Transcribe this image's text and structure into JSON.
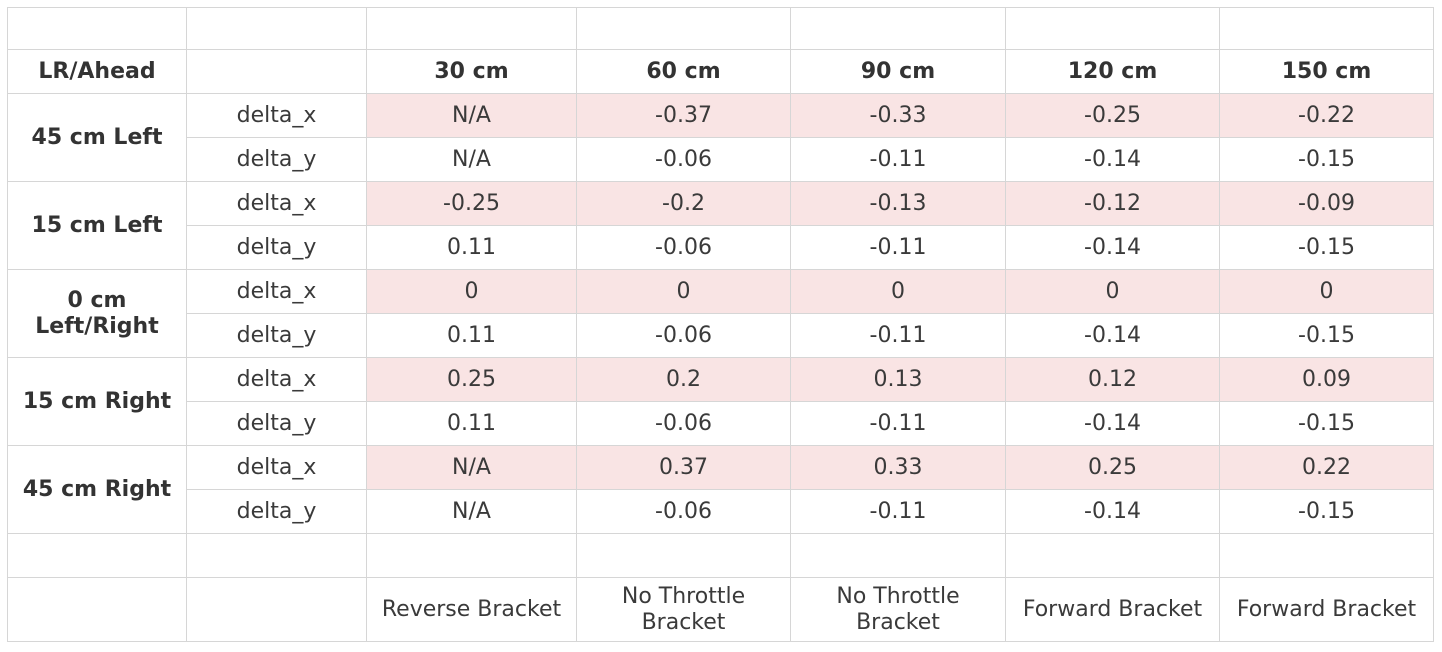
{
  "header": {
    "corner_label": "LR/Ahead",
    "distances": [
      "30 cm",
      "60 cm",
      "90 cm",
      "120 cm",
      "150 cm"
    ]
  },
  "groups": [
    {
      "label": "45 cm Left",
      "rows": [
        {
          "metric": "delta_x",
          "values": [
            "N/A",
            "-0.37",
            "-0.33",
            "-0.25",
            "-0.22"
          ]
        },
        {
          "metric": "delta_y",
          "values": [
            "N/A",
            "-0.06",
            "-0.11",
            "-0.14",
            "-0.15"
          ]
        }
      ]
    },
    {
      "label": "15 cm Left",
      "rows": [
        {
          "metric": "delta_x",
          "values": [
            "-0.25",
            "-0.2",
            "-0.13",
            "-0.12",
            "-0.09"
          ]
        },
        {
          "metric": "delta_y",
          "values": [
            "0.11",
            "-0.06",
            "-0.11",
            "-0.14",
            "-0.15"
          ]
        }
      ]
    },
    {
      "label_line1": "0 cm",
      "label_line2": "Left/Right",
      "rows": [
        {
          "metric": "delta_x",
          "values": [
            "0",
            "0",
            "0",
            "0",
            "0"
          ]
        },
        {
          "metric": "delta_y",
          "values": [
            "0.11",
            "-0.06",
            "-0.11",
            "-0.14",
            "-0.15"
          ]
        }
      ]
    },
    {
      "label": "15 cm Right",
      "rows": [
        {
          "metric": "delta_x",
          "values": [
            "0.25",
            "0.2",
            "0.13",
            "0.12",
            "0.09"
          ]
        },
        {
          "metric": "delta_y",
          "values": [
            "0.11",
            "-0.06",
            "-0.11",
            "-0.14",
            "-0.15"
          ]
        }
      ]
    },
    {
      "label": "45 cm Right",
      "rows": [
        {
          "metric": "delta_x",
          "values": [
            "N/A",
            "0.37",
            "0.33",
            "0.25",
            "0.22"
          ]
        },
        {
          "metric": "delta_y",
          "values": [
            "N/A",
            "-0.06",
            "-0.11",
            "-0.14",
            "-0.15"
          ]
        }
      ]
    }
  ],
  "footer": {
    "brackets": [
      {
        "line1": "Reverse Bracket",
        "line2": ""
      },
      {
        "line1": "No Throttle",
        "line2": "Bracket"
      },
      {
        "line1": "No Throttle",
        "line2": "Bracket"
      },
      {
        "line1": "Forward Bracket",
        "line2": ""
      },
      {
        "line1": "Forward Bracket",
        "line2": ""
      }
    ]
  },
  "colors": {
    "delta_x_row_fill": "#f9e4e4",
    "grid_line": "#d6d6d6"
  }
}
